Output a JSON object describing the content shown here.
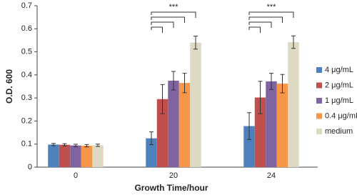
{
  "chart_data": {
    "type": "bar",
    "xlabel": "Growth Time/hour",
    "ylabel": "O.D. 600",
    "categories": [
      "0",
      "20",
      "24"
    ],
    "series": [
      {
        "name": "4 μg/mL",
        "color": "#4f81bd",
        "values": [
          0.098,
          0.125,
          0.178
        ],
        "errors": [
          0.005,
          0.028,
          0.058
        ]
      },
      {
        "name": "2 μg/mL",
        "color": "#c0504d",
        "values": [
          0.097,
          0.295,
          0.302
        ],
        "errors": [
          0.005,
          0.063,
          0.07
        ]
      },
      {
        "name": "1 μg/mL",
        "color": "#8064a2",
        "values": [
          0.094,
          0.375,
          0.372
        ],
        "errors": [
          0.005,
          0.04,
          0.035
        ]
      },
      {
        "name": "0.4 μg/mL",
        "color": "#f79646",
        "values": [
          0.093,
          0.365,
          0.362
        ],
        "errors": [
          0.005,
          0.042,
          0.04
        ]
      },
      {
        "name": "medium",
        "color": "#ddd9c3",
        "values": [
          0.095,
          0.54,
          0.542
        ],
        "errors": [
          0.005,
          0.028,
          0.027
        ]
      }
    ],
    "annotations": [
      {
        "text": "***",
        "category": 1
      },
      {
        "text": "***",
        "category": 2
      }
    ],
    "ylim": [
      0,
      0.7
    ],
    "yticks": [
      0,
      0.1,
      0.2,
      0.3,
      0.4,
      0.5,
      0.6,
      0.7
    ],
    "grid": false,
    "legend": "right"
  }
}
